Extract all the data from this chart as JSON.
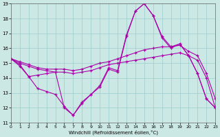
{
  "xlabel": "Windchill (Refroidissement éolien,°C)",
  "xlim": [
    0,
    23
  ],
  "ylim": [
    11,
    19
  ],
  "yticks": [
    11,
    12,
    13,
    14,
    15,
    16,
    17,
    18,
    19
  ],
  "xticks": [
    0,
    1,
    2,
    3,
    4,
    5,
    6,
    7,
    8,
    9,
    10,
    11,
    12,
    13,
    14,
    15,
    16,
    17,
    18,
    19,
    20,
    21,
    22,
    23
  ],
  "background_color": "#cce8e4",
  "line_color": "#aa00aa",
  "grid_color": "#99cccc",
  "series": [
    {
      "x": [
        0,
        1,
        2,
        3,
        4,
        5,
        6,
        7,
        8,
        9,
        10,
        11,
        12,
        13,
        14,
        15,
        16,
        17,
        18,
        19,
        20,
        21,
        22,
        23
      ],
      "y": [
        15.3,
        14.9,
        14.1,
        14.2,
        14.3,
        14.4,
        12.0,
        11.5,
        12.3,
        12.9,
        13.5,
        14.7,
        14.5,
        16.9,
        18.5,
        19.0,
        18.2,
        16.8,
        16.1,
        16.3,
        15.5,
        14.3,
        12.6,
        12.0
      ]
    },
    {
      "x": [
        0,
        1,
        2,
        3,
        4,
        5,
        6,
        7,
        8,
        9,
        10,
        11,
        12,
        13,
        14,
        15,
        16,
        17,
        18,
        19,
        20,
        21,
        22,
        23
      ],
      "y": [
        15.3,
        14.8,
        14.1,
        13.3,
        13.1,
        12.9,
        12.1,
        11.5,
        12.4,
        12.9,
        13.4,
        14.6,
        14.4,
        16.8,
        18.5,
        19.0,
        18.2,
        16.7,
        16.0,
        16.3,
        15.5,
        14.3,
        12.6,
        12.0
      ]
    },
    {
      "x": [
        0,
        1,
        2,
        3,
        4,
        5,
        6,
        7,
        8,
        9,
        10,
        11,
        12,
        13,
        14,
        15,
        16,
        17,
        18,
        19,
        20,
        21,
        22,
        23
      ],
      "y": [
        15.3,
        15.1,
        14.9,
        14.7,
        14.6,
        14.6,
        14.6,
        14.5,
        14.6,
        14.8,
        15.0,
        15.1,
        15.3,
        15.5,
        15.7,
        15.9,
        16.0,
        16.1,
        16.1,
        16.2,
        15.8,
        15.5,
        14.3,
        12.6
      ]
    },
    {
      "x": [
        0,
        1,
        2,
        3,
        4,
        5,
        6,
        7,
        8,
        9,
        10,
        11,
        12,
        13,
        14,
        15,
        16,
        17,
        18,
        19,
        20,
        21,
        22,
        23
      ],
      "y": [
        15.3,
        15.0,
        14.8,
        14.6,
        14.5,
        14.4,
        14.4,
        14.3,
        14.4,
        14.5,
        14.7,
        14.9,
        15.0,
        15.1,
        15.2,
        15.3,
        15.4,
        15.5,
        15.6,
        15.7,
        15.5,
        15.2,
        14.0,
        12.0
      ]
    }
  ]
}
